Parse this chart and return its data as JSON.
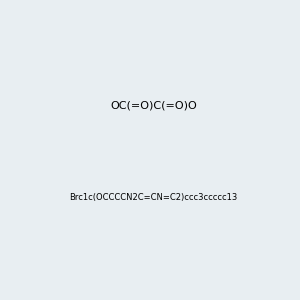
{
  "smiles_top": "OC(=O)C(=O)O",
  "smiles_bottom": "Brc1c(OCCCCN2C=CN=C2)ccc3ccccc13",
  "background_color": "#e8eef2",
  "fig_width": 3.0,
  "fig_height": 3.0,
  "dpi": 100
}
